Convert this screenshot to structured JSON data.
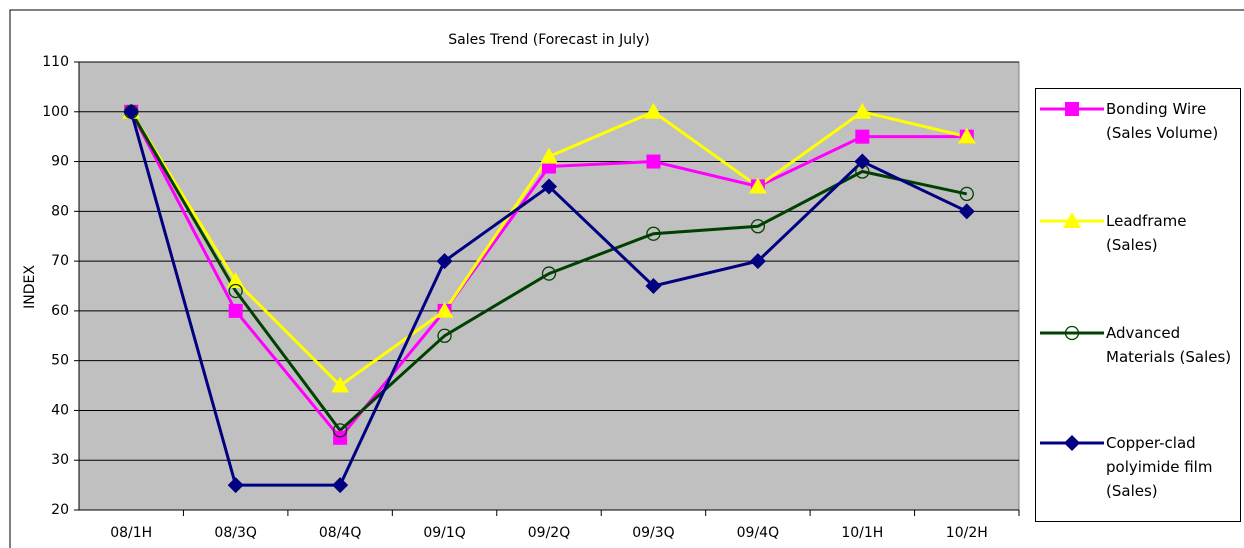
{
  "chart_data": {
    "type": "line",
    "title": "Sales Trend (Forecast in July)",
    "y_label": "INDEX",
    "categories": [
      "08/1H",
      "08/3Q",
      "08/4Q",
      "09/1Q",
      "09/2Q",
      "09/3Q",
      "09/4Q",
      "10/1H",
      "10/2H"
    ],
    "series": [
      {
        "name": "Bonding Wire (Sales Volume)",
        "color": "#ff00ff",
        "marker": "square",
        "values": [
          100,
          60,
          34.5,
          60,
          89,
          90,
          85,
          95,
          95
        ]
      },
      {
        "name": "Leadframe (Sales)",
        "color": "#ffff00",
        "marker": "triangle",
        "values": [
          100,
          66,
          45,
          60,
          91,
          100,
          85,
          100,
          95
        ]
      },
      {
        "name": "Advanced Materials (Sales)",
        "color": "#004000",
        "marker": "circle",
        "values": [
          100,
          64,
          36,
          55,
          67.5,
          75.5,
          77,
          88,
          83.5
        ]
      },
      {
        "name": "Copper-clad polyimide film (Sales)",
        "color": "#000080",
        "marker": "diamond",
        "values": [
          100,
          25,
          25,
          70,
          85,
          65,
          70,
          90,
          80
        ]
      }
    ],
    "ylim": [
      20,
      110
    ],
    "yticks": [
      20,
      30,
      40,
      50,
      60,
      70,
      80,
      90,
      100,
      110
    ],
    "grid": true
  }
}
